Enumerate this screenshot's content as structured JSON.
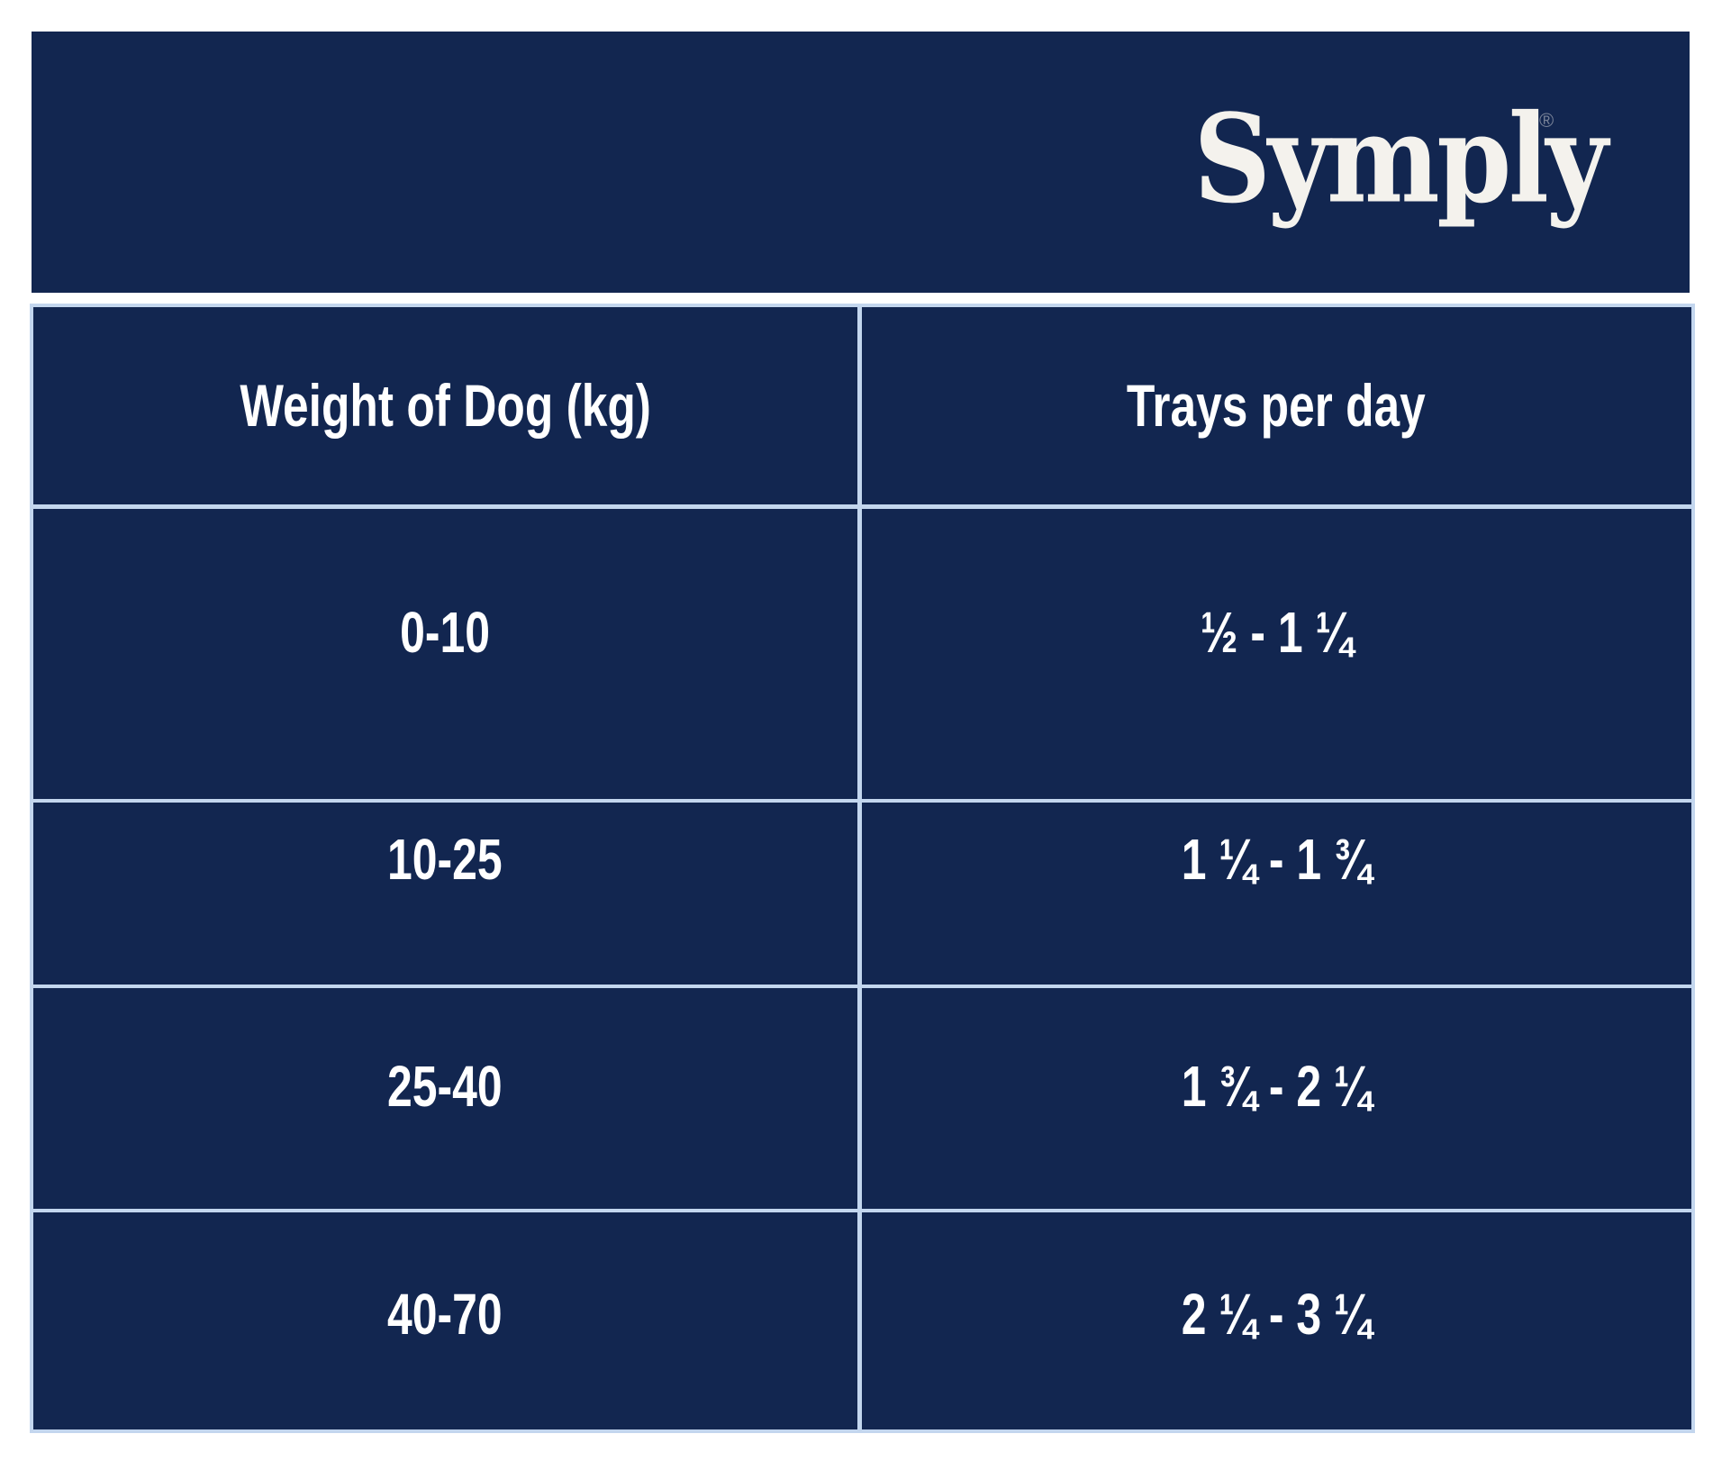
{
  "brand": {
    "logo_text": "Symply",
    "registered_mark": "®"
  },
  "table": {
    "columns": [
      "Weight of Dog (kg)",
      "Trays per day"
    ],
    "rows": [
      {
        "weight": "0-10",
        "trays": "½ - 1 ¼"
      },
      {
        "weight": "10-25",
        "trays": "1 ¼ - 1 ¾"
      },
      {
        "weight": "25-40",
        "trays": "1 ¾ - 2 ¼"
      },
      {
        "weight": "40-70",
        "trays": "2 ¼ - 3 ¼"
      }
    ]
  },
  "colors": {
    "navy_background": "#122650",
    "grid_line": "#c3d6ee",
    "text": "#ffffff",
    "logo_text": "#f4f2ed",
    "page_background": "#ffffff"
  },
  "chart_data": {
    "type": "table",
    "columns": [
      "Weight of Dog (kg)",
      "Trays per day"
    ],
    "rows": [
      [
        "0-10",
        "½ - 1 ¼"
      ],
      [
        "10-25",
        "1 ¼ - 1 ¾"
      ],
      [
        "25-40",
        "1 ¾ - 2 ¼"
      ],
      [
        "40-70",
        "2 ¼ - 3 ¼"
      ]
    ],
    "legend_position": "none",
    "grid": true
  }
}
